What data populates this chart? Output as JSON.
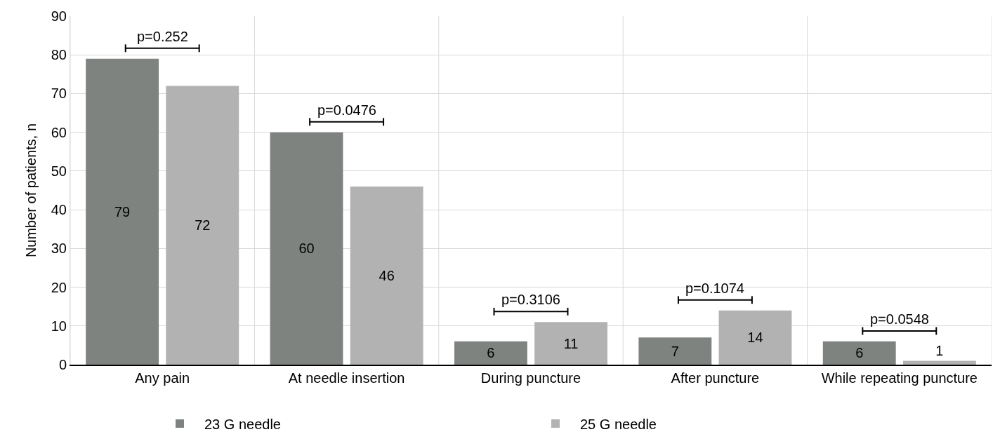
{
  "chart_data": {
    "type": "bar",
    "ylabel": "Number of patients, n",
    "categories": [
      "Any pain",
      "At needle insertion",
      "During puncture",
      "After puncture",
      "While repeating puncture"
    ],
    "series": [
      {
        "name": "23 G needle",
        "color": "#7f8380",
        "values": [
          79,
          60,
          6,
          7,
          6
        ]
      },
      {
        "name": "25 G needle",
        "color": "#b2b2b2",
        "values": [
          72,
          46,
          11,
          14,
          1
        ]
      }
    ],
    "ylim": [
      0,
      90
    ],
    "yticks": [
      0,
      10,
      20,
      30,
      40,
      50,
      60,
      70,
      80,
      90
    ],
    "grid": true,
    "legend": "bottom",
    "data_labels": true,
    "annotations": [
      "p=0.252",
      "p=0.0476",
      "p=0.3106",
      "p=0.1074",
      "p=0.0548"
    ]
  }
}
